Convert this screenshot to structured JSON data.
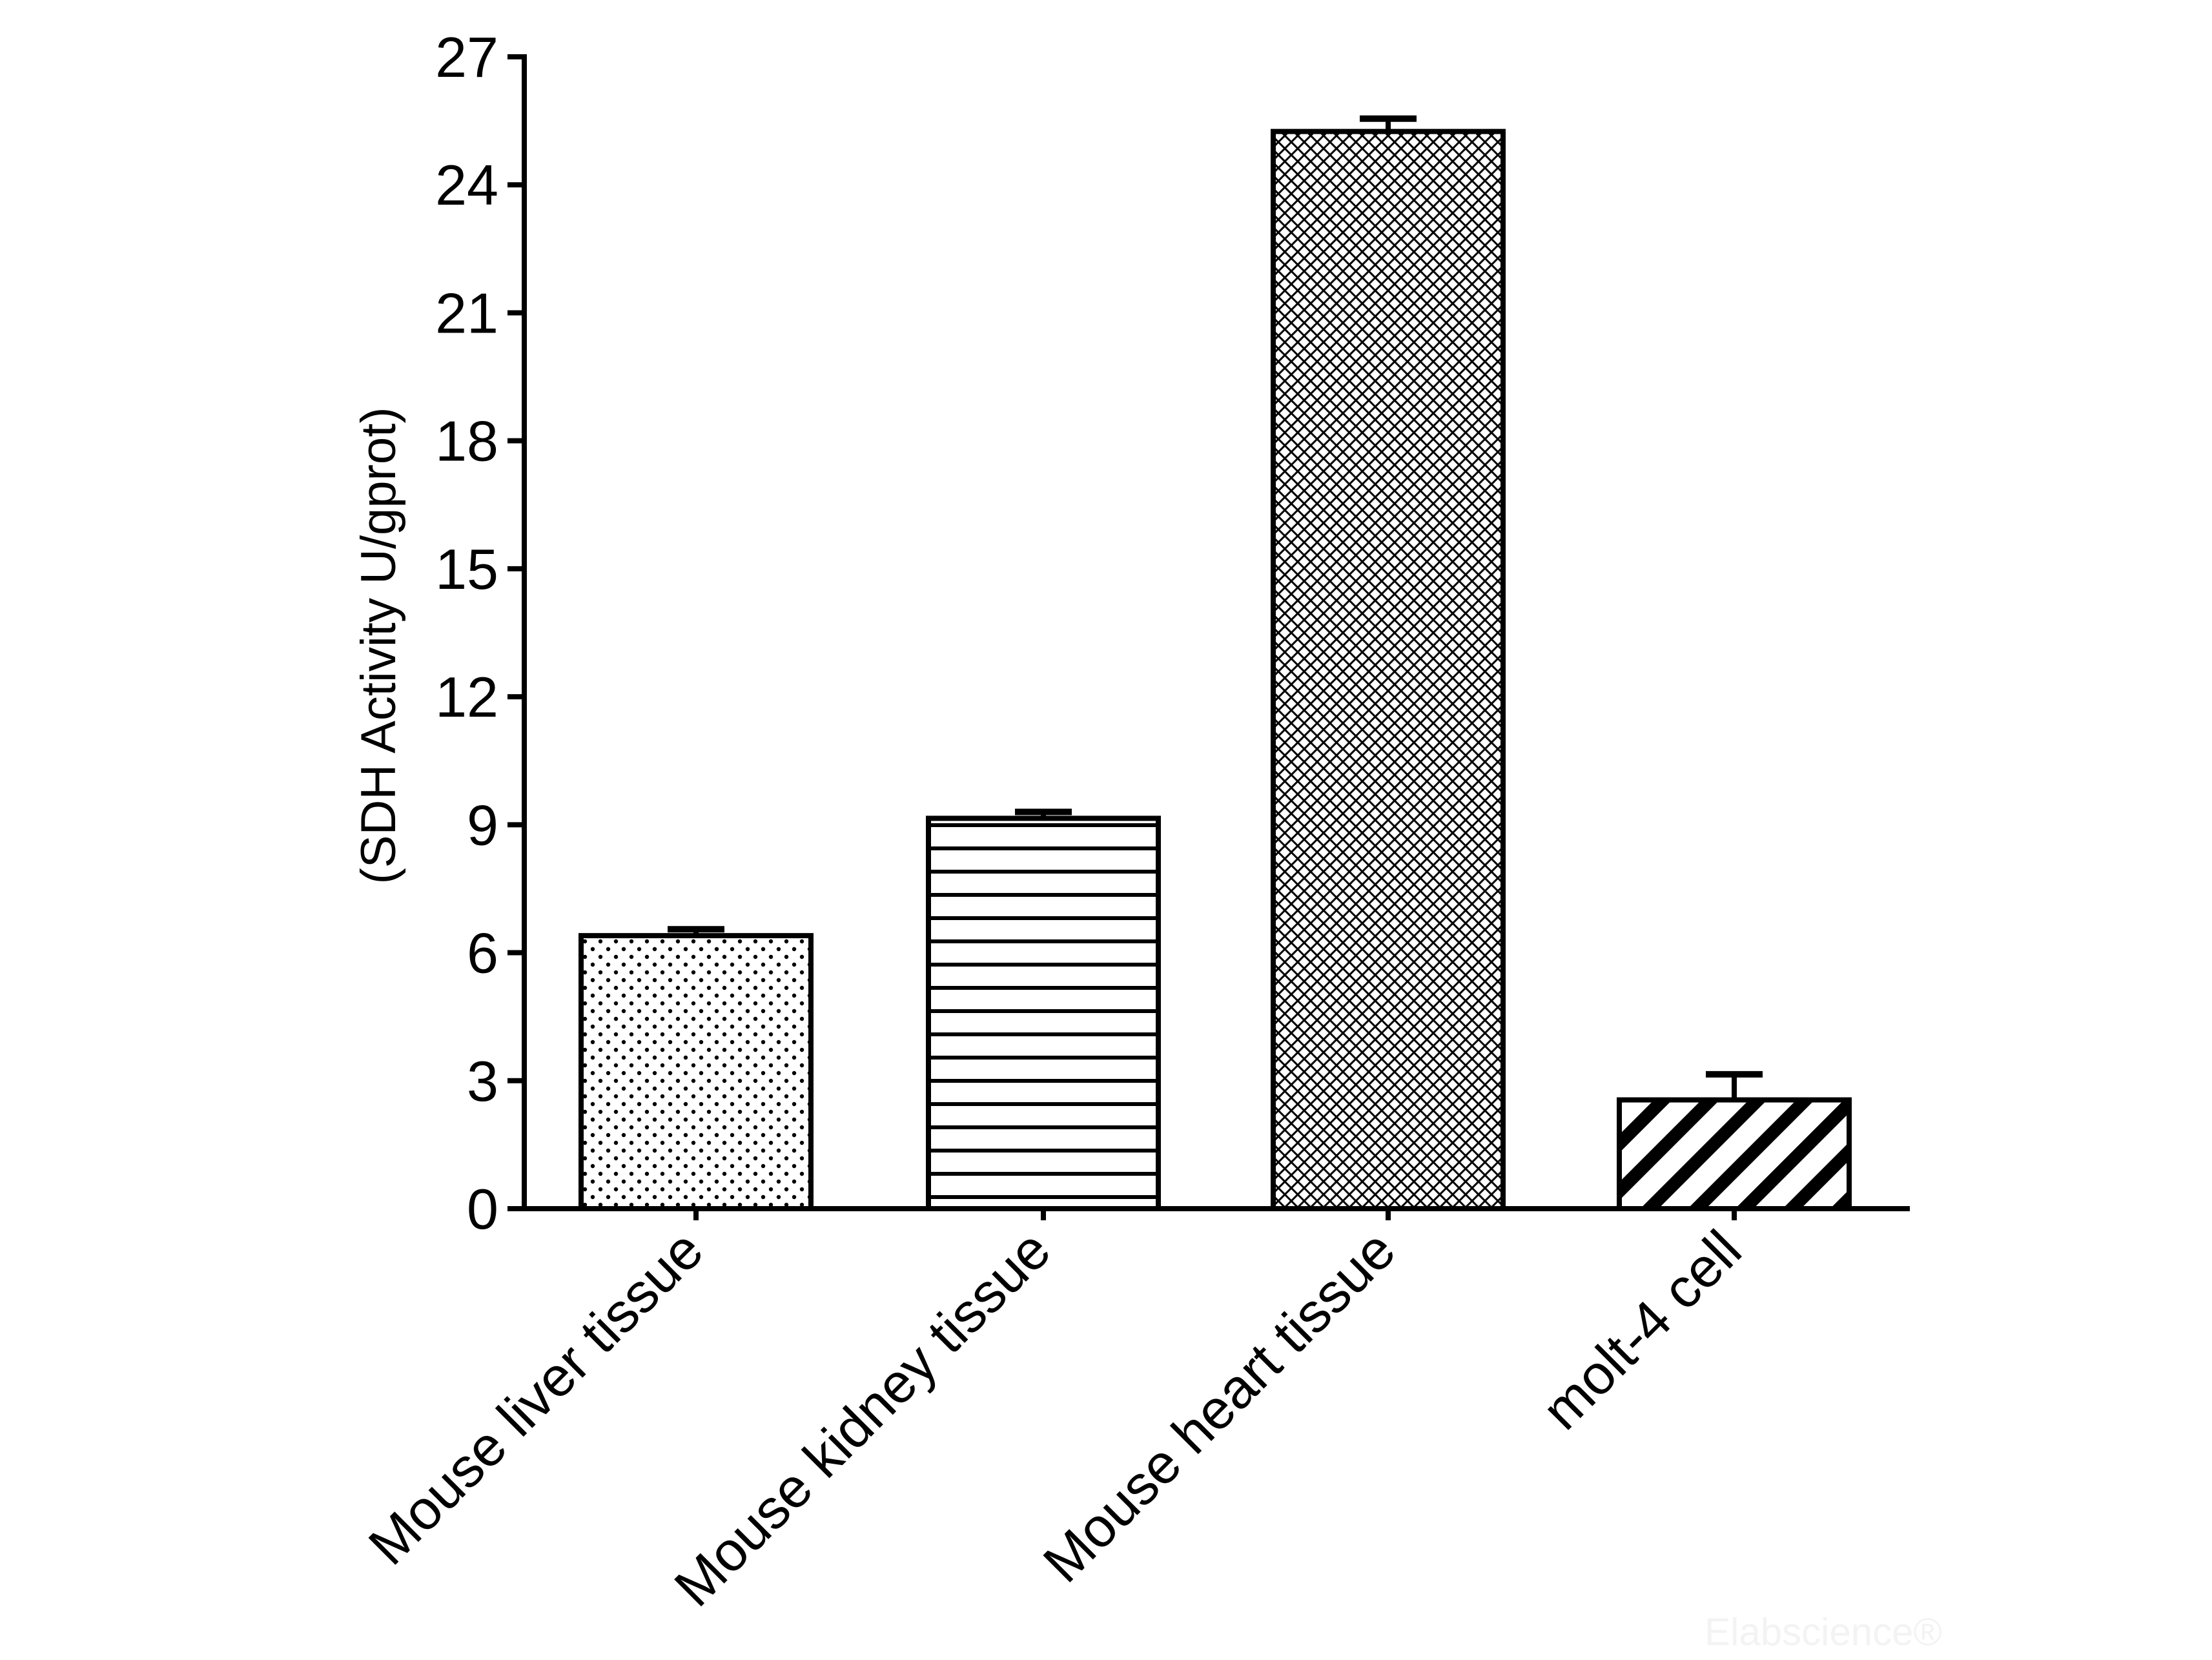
{
  "chart_data": {
    "type": "bar",
    "title": "",
    "xlabel": "",
    "ylabel": "(SDH Activity U/gprot)",
    "categories": [
      "Mouse liver tissue",
      "Mouse kidney tissue",
      "Mouse heart tissue",
      "molt-4 cell"
    ],
    "values": [
      6.4,
      9.15,
      25.25,
      2.55
    ],
    "errors": [
      0.15,
      0.15,
      0.3,
      0.6
    ],
    "patterns": [
      "dots",
      "horizontal-lines",
      "crosshatch",
      "diagonal-stripes"
    ],
    "ylim": [
      0,
      27
    ],
    "yticks": [
      0,
      3,
      6,
      9,
      12,
      15,
      18,
      21,
      24,
      27
    ],
    "grid": false,
    "legend": "none"
  },
  "watermark": "Elabscience®",
  "colors": {
    "ink": "#000000",
    "background": "#ffffff"
  }
}
